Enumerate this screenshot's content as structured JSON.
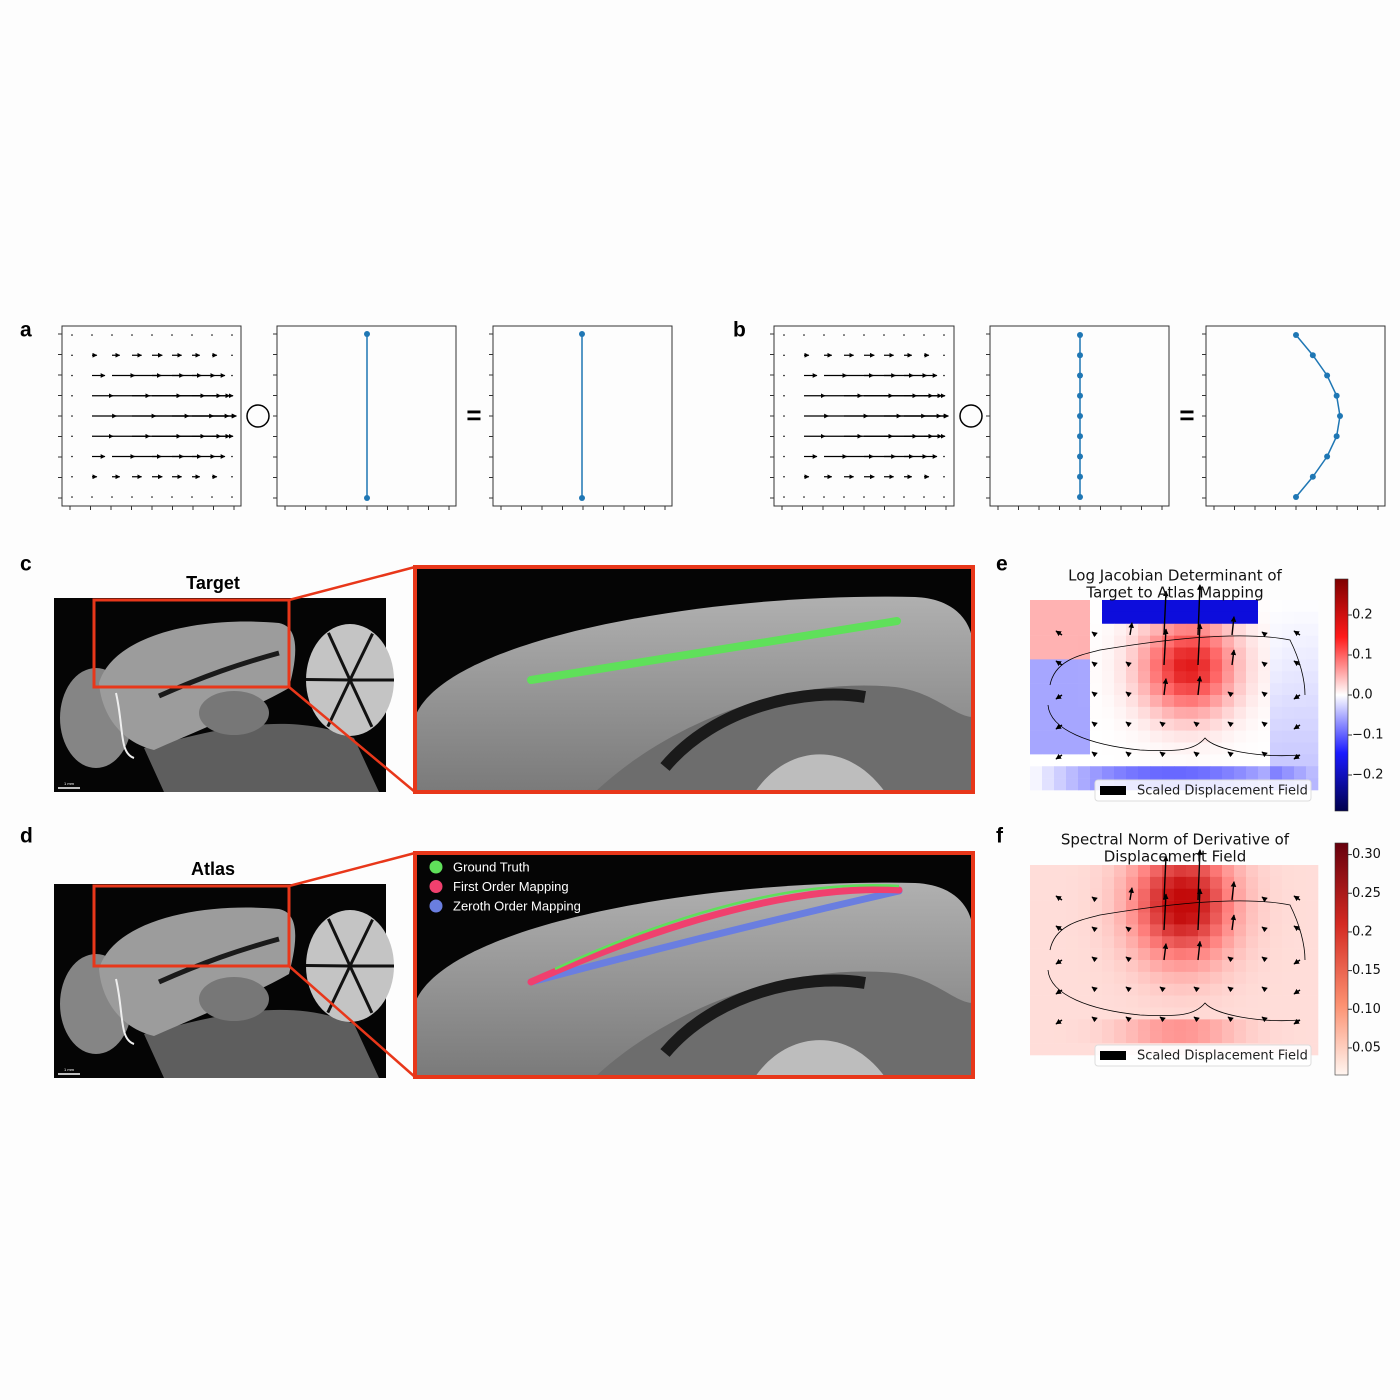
{
  "labels": [
    "a",
    "b",
    "c",
    "d",
    "e",
    "f"
  ],
  "target": {
    "title": "Target",
    "scale": "1 mm"
  },
  "atlas": {
    "title": "Atlas",
    "scale": "1 mm",
    "legend": [
      "Ground Truth",
      "First Order Mapping",
      "Zeroth Order Mapping"
    ]
  },
  "jacobian": {
    "title": [
      "Log Jacobian Determinant of",
      "Target to Atlas Mapping"
    ],
    "legend": "Scaled Displacement Field",
    "colorbar": {
      "lim": [
        -0.29,
        0.29
      ],
      "ticks": [
        0.2,
        0.1,
        {
          "value": 0,
          "label": "0.0"
        },
        {
          "value": -0.1,
          "label": "−0.1"
        },
        {
          "value": -0.2,
          "label": "−0.2"
        }
      ]
    }
  },
  "spectral": {
    "title": [
      "Spectral Norm of Derivative of",
      "Displacement Field"
    ],
    "legend": "Scaled Displacement Field",
    "colorbar": {
      "lim": [
        0.015,
        0.315
      ],
      "ticks": [
        {
          "value": 0.3,
          "label": "0.30"
        },
        0.25,
        0.2,
        0.15,
        {
          "value": 0.1,
          "label": "0.10"
        },
        0.05
      ]
    }
  }
}
